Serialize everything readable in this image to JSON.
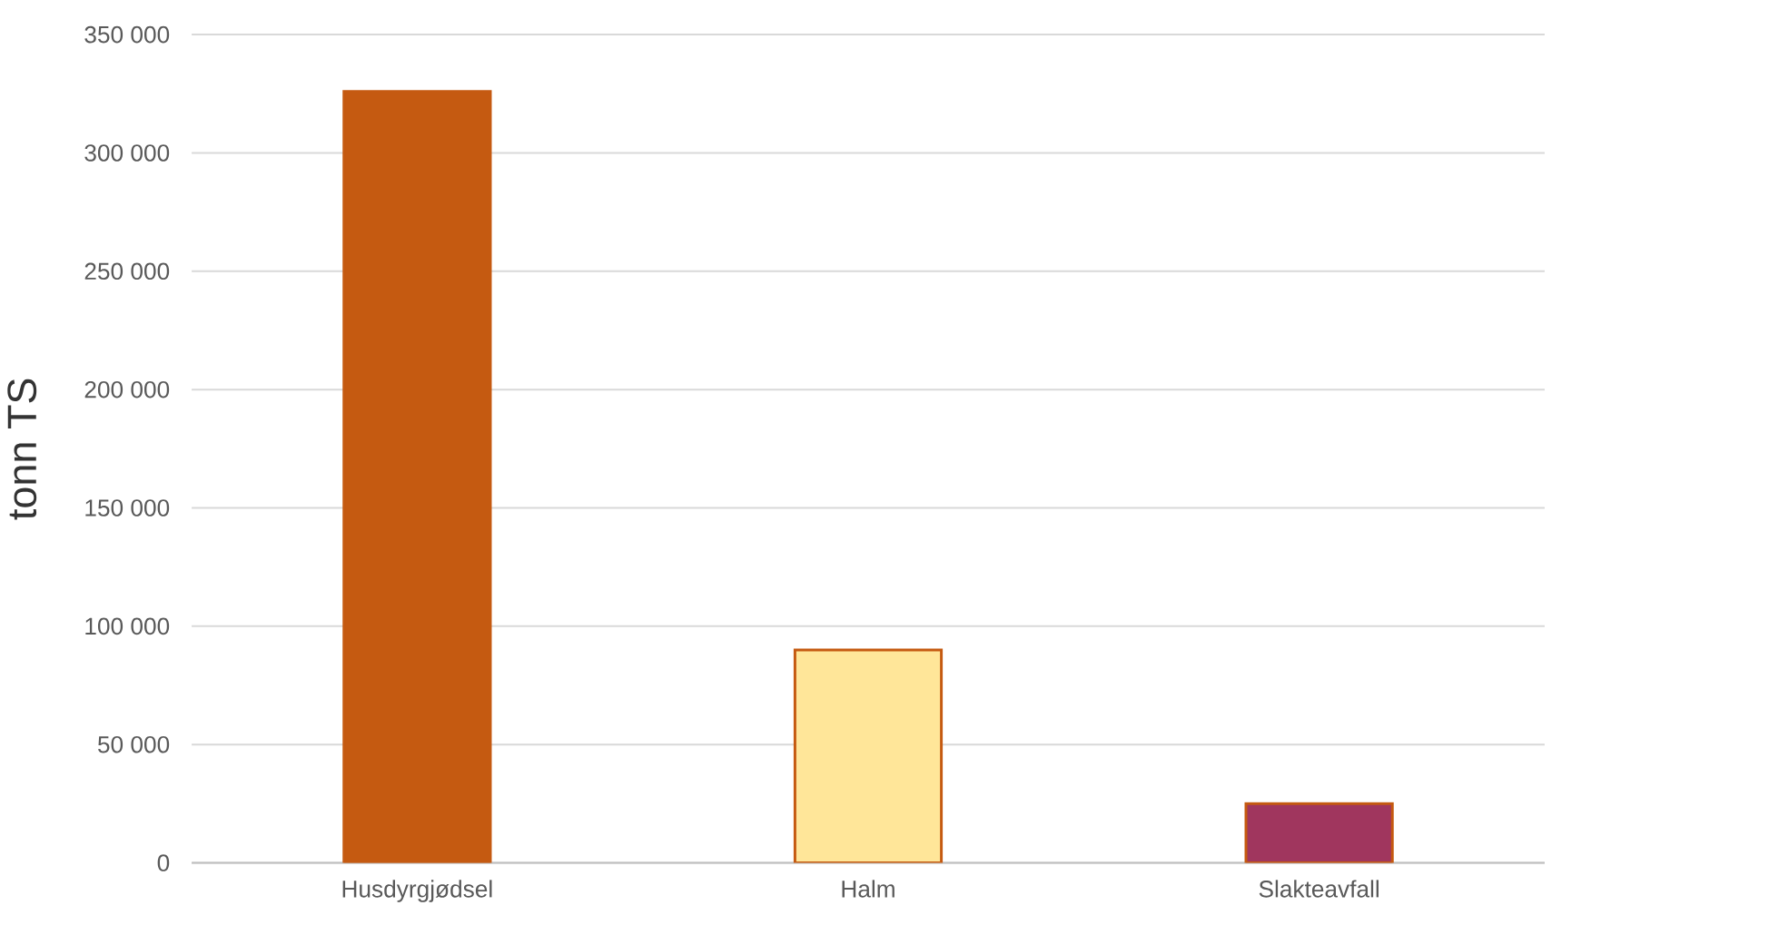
{
  "chart_data": {
    "type": "bar",
    "ylabel": "tonn TS",
    "categories": [
      "Husdyrgjødsel",
      "Halm",
      "Slakteavfall"
    ],
    "values": [
      326000,
      90000,
      25000
    ],
    "colors": [
      "#c55a11",
      "#ffe699",
      "#a0365e"
    ],
    "ylim": [
      0,
      350000
    ],
    "yticks": [
      {
        "value": 0,
        "label": "0"
      },
      {
        "value": 50000,
        "label": "50 000"
      },
      {
        "value": 100000,
        "label": "100 000"
      },
      {
        "value": 150000,
        "label": "150 000"
      },
      {
        "value": 200000,
        "label": "200 000"
      },
      {
        "value": 250000,
        "label": "250 000"
      },
      {
        "value": 300000,
        "label": "300 000"
      },
      {
        "value": 350000,
        "label": "350 000"
      }
    ],
    "grid": "y"
  }
}
